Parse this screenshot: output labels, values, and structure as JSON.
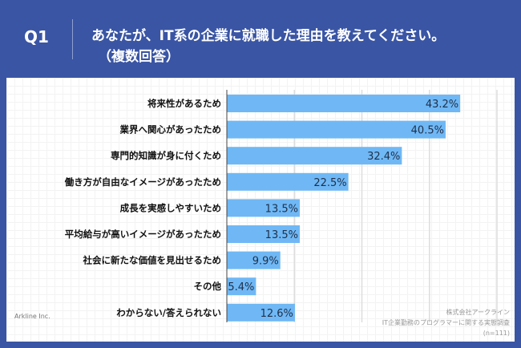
{
  "header": {
    "question_no": "Q1",
    "title_line1": "あなたが、IT系の企業に就職した理由を教えてください。",
    "title_line2": "（複数回答）"
  },
  "chart_data": {
    "type": "bar",
    "orientation": "horizontal",
    "title": "あなたが、IT系の企業に就職した理由を教えてください。（複数回答）",
    "categories": [
      "将来性があるため",
      "業界へ関心があったため",
      "専門的知識が身に付くため",
      "働き方が自由なイメージがあったため",
      "成長を実感しやすいため",
      "平均給与が高いイメージがあったため",
      "社会に新たな価値を見出せるため",
      "その他",
      "わからない/答えられない"
    ],
    "values": [
      43.2,
      40.5,
      32.4,
      22.5,
      13.5,
      13.5,
      9.9,
      5.4,
      12.6
    ],
    "value_labels": [
      "43.2%",
      "40.5%",
      "32.4%",
      "22.5%",
      "13.5%",
      "13.5%",
      "9.9%",
      "5.4%",
      "12.6%"
    ],
    "xlim": [
      0,
      50
    ],
    "grid": true,
    "bar_color": "#6fb8f5"
  },
  "source": {
    "company": "株式会社アークライン",
    "survey": "IT企業勤務のプログラマーに関する実態調査",
    "n": "(n=111)"
  },
  "logo": {
    "text": "Arkline Inc."
  },
  "colors": {
    "background": "#3a55a4"
  }
}
